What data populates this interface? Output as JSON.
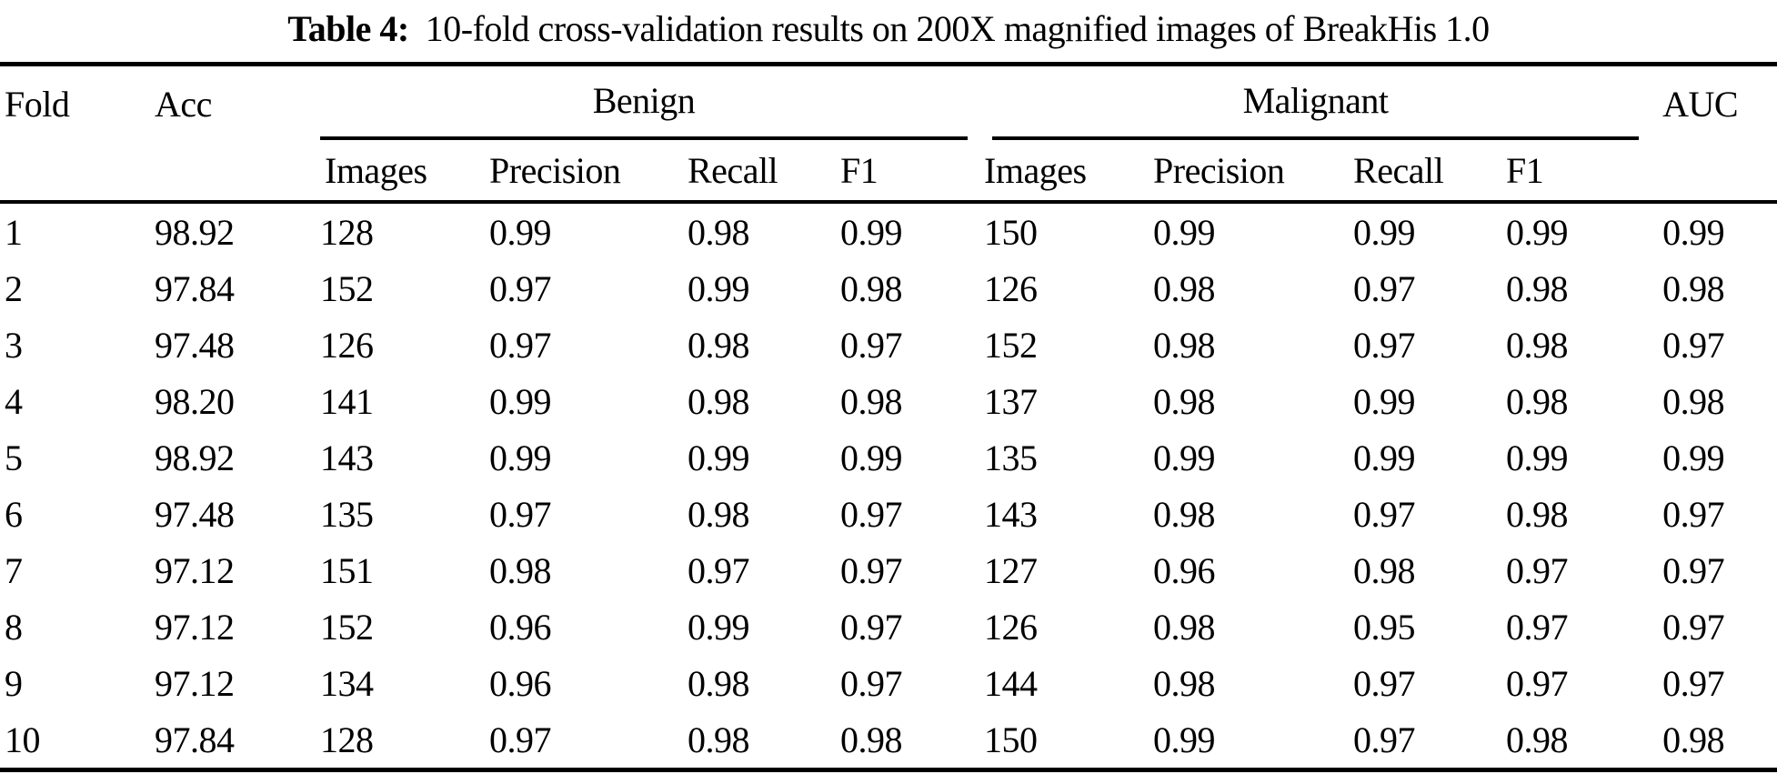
{
  "caption": {
    "label": "Table 4:",
    "text": "10-fold cross-validation results on 200X magnified images of BreakHis 1.0"
  },
  "table": {
    "col_fold": "Fold",
    "col_acc": "Acc",
    "col_auc": "AUC",
    "groups": [
      {
        "label": "Benign",
        "sub": [
          "Images",
          "Precision",
          "Recall",
          "F1"
        ]
      },
      {
        "label": "Malignant",
        "sub": [
          "Images",
          "Precision",
          "Recall",
          "F1"
        ]
      }
    ],
    "rows": [
      [
        "1",
        "98.92",
        "128",
        "0.99",
        "0.98",
        "0.99",
        "150",
        "0.99",
        "0.99",
        "0.99",
        "0.99"
      ],
      [
        "2",
        "97.84",
        "152",
        "0.97",
        "0.99",
        "0.98",
        "126",
        "0.98",
        "0.97",
        "0.98",
        "0.98"
      ],
      [
        "3",
        "97.48",
        "126",
        "0.97",
        "0.98",
        "0.97",
        "152",
        "0.98",
        "0.97",
        "0.98",
        "0.97"
      ],
      [
        "4",
        "98.20",
        "141",
        "0.99",
        "0.98",
        "0.98",
        "137",
        "0.98",
        "0.99",
        "0.98",
        "0.98"
      ],
      [
        "5",
        "98.92",
        "143",
        "0.99",
        "0.99",
        "0.99",
        "135",
        "0.99",
        "0.99",
        "0.99",
        "0.99"
      ],
      [
        "6",
        "97.48",
        "135",
        "0.97",
        "0.98",
        "0.97",
        "143",
        "0.98",
        "0.97",
        "0.98",
        "0.97"
      ],
      [
        "7",
        "97.12",
        "151",
        "0.98",
        "0.97",
        "0.97",
        "127",
        "0.96",
        "0.98",
        "0.97",
        "0.97"
      ],
      [
        "8",
        "97.12",
        "152",
        "0.96",
        "0.99",
        "0.97",
        "126",
        "0.98",
        "0.95",
        "0.97",
        "0.97"
      ],
      [
        "9",
        "97.12",
        "134",
        "0.96",
        "0.98",
        "0.97",
        "144",
        "0.98",
        "0.97",
        "0.97",
        "0.97"
      ],
      [
        "10",
        "97.84",
        "128",
        "0.97",
        "0.98",
        "0.98",
        "150",
        "0.99",
        "0.97",
        "0.98",
        "0.98"
      ]
    ]
  },
  "chart_data": {
    "type": "table",
    "title": "Table 4: 10-fold cross-validation results on 200X magnified images of BreakHis 1.0",
    "columns": [
      "Fold",
      "Acc",
      "Benign Images",
      "Benign Precision",
      "Benign Recall",
      "Benign F1",
      "Malignant Images",
      "Malignant Precision",
      "Malignant Recall",
      "Malignant F1",
      "AUC"
    ],
    "rows": [
      [
        "1",
        "98.92",
        "128",
        "0.99",
        "0.98",
        "0.99",
        "150",
        "0.99",
        "0.99",
        "0.99",
        "0.99"
      ],
      [
        "2",
        "97.84",
        "152",
        "0.97",
        "0.99",
        "0.98",
        "126",
        "0.98",
        "0.97",
        "0.98",
        "0.98"
      ],
      [
        "3",
        "97.48",
        "126",
        "0.97",
        "0.98",
        "0.97",
        "152",
        "0.98",
        "0.97",
        "0.98",
        "0.97"
      ],
      [
        "4",
        "98.20",
        "141",
        "0.99",
        "0.98",
        "0.98",
        "137",
        "0.98",
        "0.99",
        "0.98",
        "0.98"
      ],
      [
        "5",
        "98.92",
        "143",
        "0.99",
        "0.99",
        "0.99",
        "135",
        "0.99",
        "0.99",
        "0.99",
        "0.99"
      ],
      [
        "6",
        "97.48",
        "135",
        "0.97",
        "0.98",
        "0.97",
        "143",
        "0.98",
        "0.97",
        "0.98",
        "0.97"
      ],
      [
        "7",
        "97.12",
        "151",
        "0.98",
        "0.97",
        "0.97",
        "127",
        "0.96",
        "0.98",
        "0.97",
        "0.97"
      ],
      [
        "8",
        "97.12",
        "152",
        "0.96",
        "0.99",
        "0.97",
        "126",
        "0.98",
        "0.95",
        "0.97",
        "0.97"
      ],
      [
        "9",
        "97.12",
        "134",
        "0.96",
        "0.98",
        "0.97",
        "144",
        "0.98",
        "0.97",
        "0.97",
        "0.97"
      ],
      [
        "10",
        "97.84",
        "128",
        "0.97",
        "0.98",
        "0.98",
        "150",
        "0.99",
        "0.97",
        "0.98",
        "0.98"
      ]
    ]
  }
}
